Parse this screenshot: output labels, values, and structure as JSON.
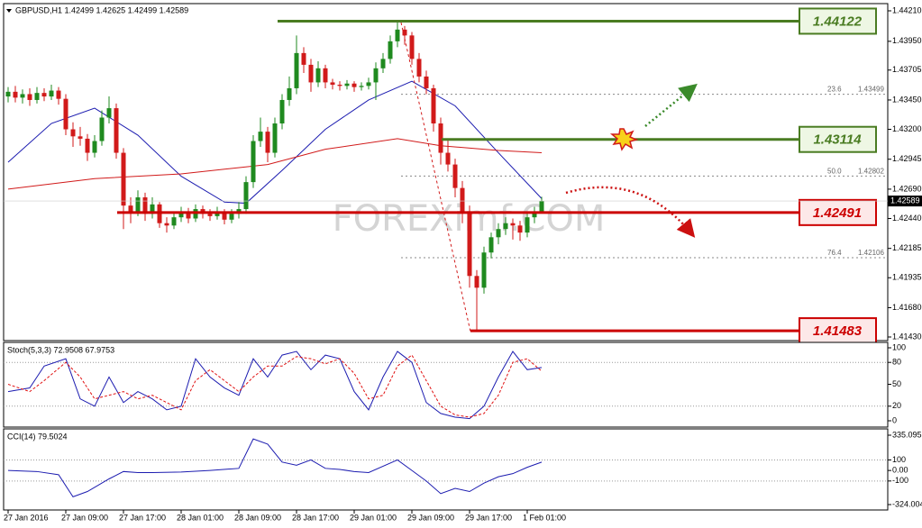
{
  "chart_data": [
    {
      "type": "candlestick",
      "title": "GBPUSD,H1 1.42499 1.42625 1.42499 1.42589",
      "watermark": "FOREXimf.COM",
      "up_color": "#1f8a1f",
      "down_color": "#d11a1a",
      "xticks": [
        {
          "value": 0,
          "label": "27 Jan 2016"
        },
        {
          "value": 8,
          "label": "27 Jan 09:00"
        },
        {
          "value": 16,
          "label": "27 Jan 17:00"
        },
        {
          "value": 24,
          "label": "28 Jan 01:00"
        },
        {
          "value": 32,
          "label": "28 Jan 09:00"
        },
        {
          "value": 40,
          "label": "28 Jan 17:00"
        },
        {
          "value": 48,
          "label": "29 Jan 01:00"
        },
        {
          "value": 56,
          "label": "29 Jan 09:00"
        },
        {
          "value": 64,
          "label": "29 Jan 17:00"
        },
        {
          "value": 72,
          "label": "1 Feb 01:00"
        }
      ],
      "ylim": [
        1.4143,
        1.4421
      ],
      "yticks": [
        {
          "value": 1.4421,
          "label": "1.44210"
        },
        {
          "value": 1.4395,
          "label": "1.43950"
        },
        1.43705,
        {
          "value": 1.4345,
          "label": "1.43450"
        },
        {
          "value": 1.432,
          "label": "1.43200"
        },
        1.42945,
        {
          "value": 1.4269,
          "label": "1.42690"
        },
        {
          "value": 1.4244,
          "label": "1.42440"
        },
        1.42185,
        1.41935,
        {
          "value": 1.4168,
          "label": "1.41680"
        },
        {
          "value": 1.4143,
          "label": "1.41430"
        }
      ],
      "last_price": 1.42589,
      "ohlc": [
        [
          1.4348,
          1.4356,
          1.4343,
          1.4352
        ],
        [
          1.4352,
          1.4357,
          1.4343,
          1.4347
        ],
        [
          1.4347,
          1.4354,
          1.4342,
          1.435
        ],
        [
          1.435,
          1.4355,
          1.434,
          1.4345
        ],
        [
          1.4345,
          1.4356,
          1.4342,
          1.4351
        ],
        [
          1.4351,
          1.4355,
          1.4344,
          1.4348
        ],
        [
          1.4348,
          1.4358,
          1.4345,
          1.4353
        ],
        [
          1.4353,
          1.4356,
          1.4341,
          1.4346
        ],
        [
          1.4346,
          1.435,
          1.4315,
          1.432
        ],
        [
          1.432,
          1.4326,
          1.4305,
          1.4314
        ],
        [
          1.4314,
          1.4322,
          1.4306,
          1.4312
        ],
        [
          1.4312,
          1.4316,
          1.4293,
          1.43
        ],
        [
          1.43,
          1.4315,
          1.4296,
          1.431
        ],
        [
          1.431,
          1.4336,
          1.4306,
          1.433
        ],
        [
          1.433,
          1.4348,
          1.4325,
          1.4338
        ],
        [
          1.4338,
          1.4342,
          1.4295,
          1.43
        ],
        [
          1.43,
          1.4304,
          1.4235,
          1.4255
        ],
        [
          1.4255,
          1.4262,
          1.424,
          1.425
        ],
        [
          1.425,
          1.4268,
          1.4246,
          1.4262
        ],
        [
          1.4262,
          1.4266,
          1.4242,
          1.4248
        ],
        [
          1.4248,
          1.4262,
          1.4244,
          1.4256
        ],
        [
          1.4256,
          1.4258,
          1.4236,
          1.424
        ],
        [
          1.424,
          1.4245,
          1.4232,
          1.4238
        ],
        [
          1.4238,
          1.425,
          1.4235,
          1.4245
        ],
        [
          1.4245,
          1.4254,
          1.4241,
          1.425
        ],
        [
          1.425,
          1.4253,
          1.424,
          1.4244
        ],
        [
          1.4244,
          1.4256,
          1.4241,
          1.4252
        ],
        [
          1.4252,
          1.4255,
          1.4244,
          1.4248
        ],
        [
          1.4248,
          1.4252,
          1.4242,
          1.4246
        ],
        [
          1.4246,
          1.4254,
          1.4243,
          1.425
        ],
        [
          1.425,
          1.4252,
          1.4239,
          1.4243
        ],
        [
          1.4243,
          1.4252,
          1.424,
          1.4248
        ],
        [
          1.4248,
          1.4258,
          1.4244,
          1.4252
        ],
        [
          1.4252,
          1.428,
          1.4248,
          1.4275
        ],
        [
          1.4275,
          1.4315,
          1.427,
          1.431
        ],
        [
          1.431,
          1.433,
          1.4305,
          1.4318
        ],
        [
          1.4318,
          1.4322,
          1.4292,
          1.43
        ],
        [
          1.43,
          1.433,
          1.4296,
          1.4325
        ],
        [
          1.4325,
          1.435,
          1.432,
          1.4345
        ],
        [
          1.4345,
          1.4365,
          1.434,
          1.4355
        ],
        [
          1.4355,
          1.44,
          1.435,
          1.4385
        ],
        [
          1.4385,
          1.439,
          1.4368,
          1.4375
        ],
        [
          1.4375,
          1.438,
          1.4352,
          1.436
        ],
        [
          1.436,
          1.4378,
          1.4356,
          1.4372
        ],
        [
          1.4372,
          1.4375,
          1.4355,
          1.436
        ],
        [
          1.436,
          1.4363,
          1.4354,
          1.4358
        ],
        [
          1.4358,
          1.4361,
          1.4353,
          1.4357
        ],
        [
          1.4357,
          1.4362,
          1.4354,
          1.4359
        ],
        [
          1.4359,
          1.4361,
          1.4352,
          1.4356
        ],
        [
          1.4356,
          1.436,
          1.4353,
          1.4357
        ],
        [
          1.4357,
          1.4364,
          1.4354,
          1.436
        ],
        [
          1.436,
          1.4377,
          1.4345,
          1.4372
        ],
        [
          1.4372,
          1.4385,
          1.4368,
          1.438
        ],
        [
          1.438,
          1.44,
          1.4376,
          1.4395
        ],
        [
          1.4395,
          1.4413,
          1.439,
          1.4405
        ],
        [
          1.4405,
          1.4408,
          1.4392,
          1.44
        ],
        [
          1.44,
          1.4403,
          1.4375,
          1.438
        ],
        [
          1.438,
          1.4385,
          1.436,
          1.4365
        ],
        [
          1.4365,
          1.437,
          1.435,
          1.4355
        ],
        [
          1.4355,
          1.4358,
          1.4318,
          1.4325
        ],
        [
          1.4325,
          1.433,
          1.429,
          1.43
        ],
        [
          1.43,
          1.4312,
          1.4284,
          1.429
        ],
        [
          1.429,
          1.4295,
          1.4262,
          1.427
        ],
        [
          1.427,
          1.4276,
          1.424,
          1.425
        ],
        [
          1.425,
          1.4255,
          1.4185,
          1.4195
        ],
        [
          1.4195,
          1.42,
          1.4148,
          1.4185
        ],
        [
          1.4185,
          1.422,
          1.418,
          1.4215
        ],
        [
          1.4215,
          1.4232,
          1.421,
          1.4228
        ],
        [
          1.4228,
          1.424,
          1.4222,
          1.4235
        ],
        [
          1.4235,
          1.4245,
          1.423,
          1.424
        ],
        [
          1.424,
          1.4244,
          1.4226,
          1.4238
        ],
        [
          1.4238,
          1.4242,
          1.4225,
          1.4232
        ],
        [
          1.4232,
          1.425,
          1.4228,
          1.4245
        ],
        [
          1.4245,
          1.4254,
          1.424,
          1.425
        ],
        [
          1.42499,
          1.42625,
          1.42499,
          1.42589
        ]
      ],
      "series": [
        {
          "color": "#1c1cb0",
          "x": [
            0,
            6,
            12,
            18,
            24,
            30,
            33,
            38,
            44,
            50,
            56,
            62,
            68,
            74
          ],
          "values": [
            1.4292,
            1.4325,
            1.4338,
            1.4315,
            1.428,
            1.4258,
            1.4257,
            1.4285,
            1.432,
            1.4345,
            1.4361,
            1.434,
            1.43,
            1.4261
          ]
        },
        {
          "color": "#d11a1a",
          "x": [
            0,
            12,
            24,
            36,
            44,
            54,
            60,
            68,
            74
          ],
          "values": [
            1.4269,
            1.4278,
            1.4282,
            1.429,
            1.4303,
            1.4312,
            1.4306,
            1.4302,
            1.43
          ]
        }
      ],
      "levels": [
        {
          "value": 1.44122,
          "color": "#4a7c22",
          "fill": "#eef7e4"
        },
        {
          "value": 1.43114,
          "color": "#4a7c22",
          "fill": "#eef7e4"
        },
        {
          "value": 1.42491,
          "color": "#cc0000",
          "fill": "#fde8e8"
        },
        {
          "value": 1.41483,
          "color": "#cc0000",
          "fill": "#fde8e8"
        }
      ],
      "fibs": [
        {
          "level": 23.6,
          "price": 1.43499
        },
        {
          "level": {
            "value": 50,
            "label": "50.0"
          },
          "price": 1.42802
        },
        {
          "level": 76.4,
          "price": 1.42106
        }
      ]
    },
    {
      "type": "line",
      "title": "Stoch(5,3,3) 72.9508 67.9753",
      "ylim": [
        0,
        100
      ],
      "yticks": [
        100,
        80,
        50,
        20,
        0
      ],
      "level_lines": [
        80,
        20
      ],
      "series": [
        {
          "color": "#1c1cb0",
          "x": [
            0,
            3,
            5,
            8,
            10,
            12,
            14,
            16,
            18,
            20,
            22,
            24,
            26,
            28,
            30,
            32,
            34,
            36,
            38,
            40,
            42,
            44,
            46,
            48,
            50,
            52,
            54,
            56,
            58,
            60,
            62,
            64,
            66,
            68,
            70,
            72,
            74
          ],
          "values": [
            40,
            45,
            75,
            85,
            30,
            20,
            60,
            25,
            40,
            30,
            15,
            20,
            85,
            60,
            45,
            35,
            85,
            60,
            90,
            95,
            70,
            90,
            85,
            40,
            15,
            60,
            95,
            80,
            25,
            10,
            5,
            3,
            20,
            60,
            95,
            70,
            72.9508
          ]
        },
        {
          "color": "#e01010",
          "dash": true,
          "x": [
            0,
            3,
            5,
            8,
            10,
            12,
            14,
            16,
            18,
            20,
            22,
            24,
            26,
            28,
            30,
            32,
            34,
            36,
            38,
            40,
            42,
            44,
            46,
            48,
            50,
            52,
            54,
            56,
            58,
            60,
            62,
            64,
            66,
            68,
            70,
            72,
            74
          ],
          "values": [
            50,
            40,
            55,
            80,
            60,
            30,
            35,
            40,
            30,
            35,
            25,
            15,
            55,
            70,
            55,
            40,
            60,
            75,
            75,
            88,
            85,
            78,
            85,
            65,
            30,
            35,
            75,
            90,
            55,
            20,
            8,
            5,
            10,
            35,
            80,
            85,
            67.9753
          ]
        }
      ]
    },
    {
      "type": "line",
      "title": "CCI(14) 79.5024",
      "ylim": [
        -324.004,
        335.095
      ],
      "yticks": [
        335.095,
        100,
        {
          "value": 0,
          "label": "0.00"
        },
        -100,
        -324.004
      ],
      "level_lines": [
        100,
        -100
      ],
      "series": [
        {
          "color": "#1c1cb0",
          "x": [
            0,
            4,
            7,
            9,
            11,
            14,
            16,
            18,
            20,
            24,
            28,
            32,
            34,
            36,
            38,
            40,
            42,
            44,
            46,
            48,
            50,
            54,
            56,
            58,
            60,
            62,
            64,
            66,
            68,
            70,
            72,
            74
          ],
          "values": [
            0,
            -10,
            -40,
            -250,
            -200,
            -80,
            -10,
            -20,
            -20,
            -15,
            0,
            20,
            300,
            250,
            80,
            50,
            100,
            20,
            10,
            -10,
            -20,
            100,
            0,
            -100,
            -220,
            -170,
            -200,
            -120,
            -60,
            -30,
            30,
            79.5024
          ]
        }
      ]
    }
  ]
}
